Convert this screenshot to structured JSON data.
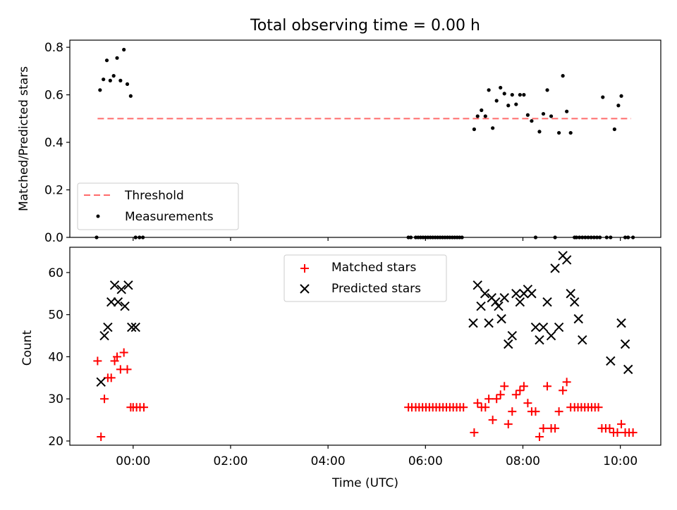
{
  "figure": {
    "title": "Total observing time = 0.00 h"
  },
  "chart_data": [
    {
      "type": "scatter",
      "ylabel": "Matched/Predicted stars",
      "xlim": [
        -1.3,
        10.83
      ],
      "ylim": [
        0,
        0.83
      ],
      "yticks": [
        0.0,
        0.2,
        0.4,
        0.6,
        0.8
      ],
      "ytick_labels": [
        "0.0",
        "0.2",
        "0.4",
        "0.6",
        "0.8"
      ],
      "xticks": [
        0,
        2,
        4,
        6,
        8,
        10
      ],
      "grid": false,
      "legend_position": "lower-left",
      "threshold": {
        "name": "Threshold",
        "value": 0.5,
        "x_range": [
          -0.73,
          10.22
        ],
        "color": "#ff6b6b"
      },
      "series": [
        {
          "name": "Measurements",
          "color": "#000000",
          "marker": "dot",
          "x": [
            -0.75,
            -0.68,
            -0.61,
            -0.54,
            -0.47,
            -0.4,
            -0.33,
            -0.26,
            -0.19,
            -0.12,
            -0.05,
            0.05,
            0.13,
            0.2,
            5.65,
            5.7,
            5.8,
            5.85,
            5.9,
            5.95,
            6.0,
            6.05,
            6.1,
            6.15,
            6.2,
            6.25,
            6.3,
            6.35,
            6.4,
            6.45,
            6.5,
            6.55,
            6.6,
            6.65,
            6.7,
            6.75,
            7.0,
            7.07,
            7.15,
            7.23,
            7.3,
            7.38,
            7.46,
            7.54,
            7.62,
            7.7,
            7.78,
            7.86,
            7.94,
            8.02,
            8.1,
            8.18,
            8.26,
            8.34,
            8.42,
            8.5,
            8.58,
            8.66,
            8.74,
            8.82,
            8.9,
            8.98,
            9.06,
            9.1,
            9.16,
            9.22,
            9.28,
            9.34,
            9.4,
            9.46,
            9.52,
            9.58,
            9.64,
            9.72,
            9.8,
            9.88,
            9.96,
            10.02,
            10.1,
            10.16,
            10.26
          ],
          "y": [
            0.0,
            0.62,
            0.665,
            0.745,
            0.66,
            0.68,
            0.755,
            0.66,
            0.79,
            0.645,
            0.595,
            0.0,
            0.0,
            0.0,
            0.0,
            0.0,
            0.0,
            0.0,
            0.0,
            0.0,
            0.0,
            0.0,
            0.0,
            0.0,
            0.0,
            0.0,
            0.0,
            0.0,
            0.0,
            0.0,
            0.0,
            0.0,
            0.0,
            0.0,
            0.0,
            0.0,
            0.455,
            0.51,
            0.535,
            0.51,
            0.62,
            0.46,
            0.575,
            0.63,
            0.605,
            0.555,
            0.6,
            0.56,
            0.6,
            0.6,
            0.515,
            0.49,
            0.0,
            0.445,
            0.52,
            0.62,
            0.51,
            0.0,
            0.44,
            0.68,
            0.53,
            0.44,
            0.0,
            0.0,
            0.0,
            0.0,
            0.0,
            0.0,
            0.0,
            0.0,
            0.0,
            0.0,
            0.59,
            0.0,
            0.0,
            0.455,
            0.555,
            0.595,
            0.0,
            0.0,
            0.0
          ]
        }
      ]
    },
    {
      "type": "scatter",
      "xlabel": "Time (UTC)",
      "ylabel": "Count",
      "xlim": [
        -1.3,
        10.83
      ],
      "ylim": [
        19,
        66
      ],
      "yticks": [
        20,
        30,
        40,
        50,
        60
      ],
      "ytick_labels": [
        "20",
        "30",
        "40",
        "50",
        "60"
      ],
      "xticks": [
        0,
        2,
        4,
        6,
        8,
        10
      ],
      "xtick_labels": [
        "00:00",
        "02:00",
        "04:00",
        "06:00",
        "08:00",
        "10:00"
      ],
      "grid": false,
      "legend_position": "upper-center",
      "series": [
        {
          "name": "Matched stars",
          "color": "#ff0000",
          "marker": "plus",
          "x": [
            -0.73,
            -0.66,
            -0.59,
            -0.52,
            -0.45,
            -0.38,
            -0.33,
            -0.26,
            -0.19,
            -0.12,
            -0.05,
            0.0,
            0.07,
            0.14,
            0.22,
            5.65,
            5.72,
            5.8,
            5.87,
            5.94,
            6.01,
            6.08,
            6.15,
            6.22,
            6.29,
            6.36,
            6.43,
            6.5,
            6.57,
            6.64,
            6.71,
            6.78,
            7.0,
            7.07,
            7.15,
            7.23,
            7.3,
            7.38,
            7.46,
            7.54,
            7.62,
            7.7,
            7.78,
            7.86,
            7.94,
            8.02,
            8.1,
            8.18,
            8.26,
            8.34,
            8.42,
            8.5,
            8.58,
            8.66,
            8.74,
            8.82,
            8.9,
            8.98,
            9.06,
            9.13,
            9.2,
            9.27,
            9.34,
            9.41,
            9.48,
            9.55,
            9.62,
            9.7,
            9.78,
            9.86,
            9.94,
            10.02,
            10.1,
            10.18,
            10.26
          ],
          "y": [
            39,
            21,
            30,
            35,
            35,
            39,
            40,
            37,
            41,
            37,
            28,
            28,
            28,
            28,
            28,
            28,
            28,
            28,
            28,
            28,
            28,
            28,
            28,
            28,
            28,
            28,
            28,
            28,
            28,
            28,
            28,
            28,
            22,
            29,
            28,
            28,
            30,
            25,
            30,
            31,
            33,
            24,
            27,
            31,
            32,
            33,
            29,
            27,
            27,
            21,
            23,
            33,
            23,
            23,
            27,
            32,
            34,
            28,
            28,
            28,
            28,
            28,
            28,
            28,
            28,
            28,
            23,
            23,
            23,
            22,
            22,
            24,
            22,
            22,
            22
          ]
        },
        {
          "name": "Predicted stars",
          "color": "#000000",
          "marker": "x",
          "x": [
            -0.66,
            -0.59,
            -0.52,
            -0.45,
            -0.38,
            -0.31,
            -0.24,
            -0.17,
            -0.1,
            -0.03,
            0.05,
            6.98,
            7.07,
            7.14,
            7.22,
            7.3,
            7.36,
            7.44,
            7.5,
            7.56,
            7.62,
            7.7,
            7.78,
            7.86,
            7.94,
            8.02,
            8.1,
            8.18,
            8.26,
            8.34,
            8.42,
            8.5,
            8.58,
            8.66,
            8.74,
            8.82,
            8.9,
            8.98,
            9.06,
            9.14,
            9.22,
            9.8,
            10.02,
            10.1,
            10.16
          ],
          "y": [
            34,
            45,
            47,
            53,
            57,
            53,
            56,
            52,
            57,
            47,
            47,
            48,
            57,
            52,
            55,
            48,
            54,
            53,
            52,
            49,
            54,
            43,
            45,
            55,
            53,
            55,
            56,
            55,
            47,
            44,
            47,
            53,
            45,
            61,
            47,
            64,
            63,
            55,
            53,
            49,
            44,
            39,
            48,
            43,
            37
          ]
        }
      ]
    }
  ]
}
